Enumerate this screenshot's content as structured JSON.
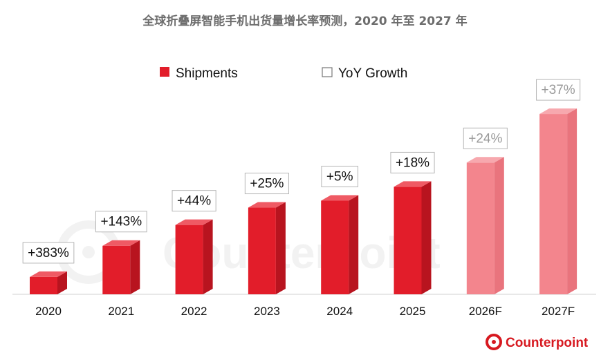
{
  "chart_data": {
    "type": "bar",
    "title": "全球折叠屏智能手机出货量增长率预测，2020 年至 2027 年",
    "categories": [
      "2020",
      "2021",
      "2022",
      "2023",
      "2024",
      "2025",
      "2026F",
      "2027F"
    ],
    "series": [
      {
        "name": "Shipments",
        "values": [
          5,
          14,
          20,
          25,
          27,
          31,
          38,
          52
        ]
      },
      {
        "name": "YoY Growth",
        "values": [
          "+383%",
          "+143%",
          "+44%",
          "+25%",
          "+5%",
          "+18%",
          "+24%",
          "+37%"
        ]
      }
    ],
    "forecast": [
      false,
      false,
      false,
      false,
      false,
      false,
      true,
      true
    ],
    "ylim": [
      0,
      55
    ],
    "legend_position": "top",
    "grid": false,
    "colors": {
      "actual_front": "#e21d2a",
      "actual_side": "#b8141f",
      "actual_top": "#ef5a64",
      "forecast_front": "#f3858d",
      "forecast_side": "#e9747d",
      "forecast_top": "#f7a8ae",
      "label_border": "#b5b5b5",
      "forecast_label_text": "#9a9a9a"
    }
  },
  "watermark": {
    "text": "Counterpoint",
    "icon": "counterpoint-logo-icon"
  },
  "logo": {
    "text": "Counterpoint",
    "icon": "counterpoint-logo-icon",
    "color": "#d71920"
  }
}
